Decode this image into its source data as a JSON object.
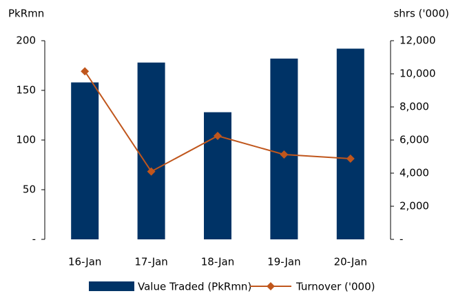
{
  "chart_data": {
    "type": "bar_line",
    "y_label": "PkRmn",
    "y2_label": "shrs ('000)",
    "categories": [
      "16-Jan",
      "17-Jan",
      "18-Jan",
      "19-Jan",
      "20-Jan"
    ],
    "series": [
      {
        "name": "Value Traded (PkRmn)",
        "type": "bar",
        "color": "#003366",
        "values": [
          158,
          178,
          128,
          182,
          192
        ]
      },
      {
        "name": "Turnover ('000)",
        "type": "line",
        "axis": "y2",
        "color": "#c0561c",
        "values": [
          10150,
          4100,
          6250,
          5125,
          4875
        ]
      }
    ],
    "ylim": [
      0,
      200
    ],
    "yticks": [
      {
        "value": 0,
        "label": "-"
      },
      50,
      100,
      150,
      200
    ],
    "y2lim": [
      0,
      12000
    ],
    "y2ticks": [
      {
        "value": 0,
        "label": "-"
      },
      {
        "value": 2000,
        "label": "2,000"
      },
      {
        "value": 4000,
        "label": "4,000"
      },
      {
        "value": 6000,
        "label": "6,000"
      },
      {
        "value": 8000,
        "label": "8,000"
      },
      {
        "value": 10000,
        "label": "10,000"
      },
      {
        "value": 12000,
        "label": "12,000"
      }
    ],
    "grid": false
  }
}
